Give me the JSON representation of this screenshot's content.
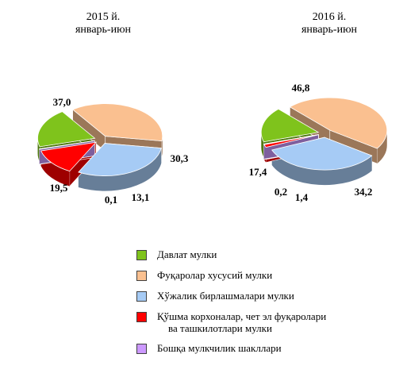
{
  "chart_data": [
    {
      "type": "pie",
      "title": [
        "2015 й.",
        "январь-июн"
      ],
      "slices": [
        {
          "key": "davlat",
          "value": 19.5,
          "label": "19,5"
        },
        {
          "key": "fuqarolar",
          "value": 37.0,
          "label": "37,0"
        },
        {
          "key": "xojalik",
          "value": 30.3,
          "label": "30,3"
        },
        {
          "key": "qoshma",
          "value": 13.1,
          "label": "13,1"
        },
        {
          "key": "boshqa",
          "value": 0.1,
          "label": "0,1"
        }
      ]
    },
    {
      "type": "pie",
      "title": [
        "2016 й.",
        "январь-июн"
      ],
      "slices": [
        {
          "key": "davlat",
          "value": 17.4,
          "label": "17,4"
        },
        {
          "key": "fuqarolar",
          "value": 46.8,
          "label": "46,8"
        },
        {
          "key": "xojalik",
          "value": 34.2,
          "label": "34,2"
        },
        {
          "key": "qoshma",
          "value": 1.4,
          "label": "1,4"
        },
        {
          "key": "boshqa",
          "value": 0.2,
          "label": "0,2"
        }
      ]
    }
  ],
  "legend": [
    {
      "key": "davlat",
      "label": "Давлат мулки",
      "color": "#7fc31c"
    },
    {
      "key": "fuqarolar",
      "label": "Фуқаролар хусусий мулки",
      "color": "#fac090"
    },
    {
      "key": "xojalik",
      "label": "Хўжалик бирлашмалари мулки",
      "color": "#a6cbf5"
    },
    {
      "key": "qoshma",
      "label": "Қўшма корхоналар, чет эл фуқаролари",
      "label2": "ва ташкилотлари мулки",
      "color": "#ff0000"
    },
    {
      "key": "boshqa",
      "label": "Бошқа мулкчилик шакллари",
      "color": "#cc99ff"
    }
  ]
}
